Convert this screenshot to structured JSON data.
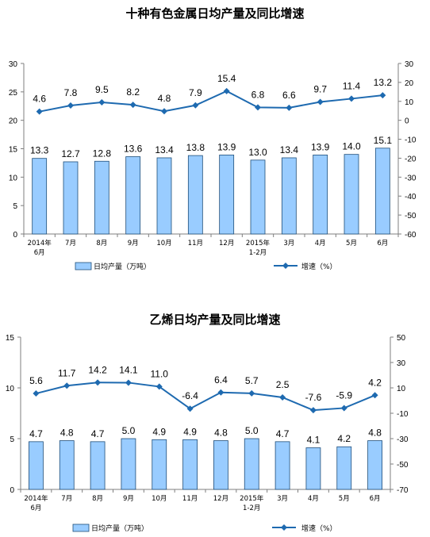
{
  "colors": {
    "bar_fill": "#99ccff",
    "bar_stroke": "#1f4e79",
    "line": "#1e6ab0",
    "axis": "#7f7f7f"
  },
  "chart_data": [
    {
      "type": "bar",
      "title": "十种有色金属日均产量及同比增速",
      "categories": [
        "2014年\n6月",
        "7月",
        "8月",
        "9月",
        "10月",
        "11月",
        "12月",
        "2015年\n1-2月",
        "3月",
        "4月",
        "5月",
        "6月"
      ],
      "yticks_left": [
        "0",
        "5",
        "10",
        "15",
        "20",
        "25",
        "30"
      ],
      "yticks_right": [
        "-60",
        "-50",
        "-40",
        "-30",
        "-20",
        "-10",
        "0",
        "10",
        "20",
        "30"
      ],
      "ylim_left": [
        0,
        30
      ],
      "ylim_right": [
        -60,
        30
      ],
      "series": [
        {
          "name": "日均产量（万吨）",
          "type": "bar",
          "axis": "left",
          "values": [
            13.3,
            12.7,
            12.8,
            13.6,
            13.4,
            13.8,
            13.9,
            13.0,
            13.4,
            13.9,
            14.0,
            15.1
          ],
          "labels": [
            "13.3",
            "12.7",
            "12.8",
            "13.6",
            "13.4",
            "13.8",
            "13.9",
            "13.0",
            "13.4",
            "13.9",
            "14.0",
            "15.1"
          ]
        },
        {
          "name": "增速（%）",
          "type": "line",
          "axis": "right",
          "values": [
            4.6,
            7.8,
            9.5,
            8.2,
            4.8,
            7.9,
            15.4,
            6.8,
            6.6,
            9.7,
            11.4,
            13.2
          ],
          "labels": [
            "4.6",
            "7.8",
            "9.5",
            "8.2",
            "4.8",
            "7.9",
            "15.4",
            "6.8",
            "6.6",
            "9.7",
            "11.4",
            "13.2"
          ]
        }
      ],
      "legend": "bottom"
    },
    {
      "type": "bar",
      "title": "乙烯日均产量及同比增速",
      "categories": [
        "2014年\n6月",
        "7月",
        "8月",
        "9月",
        "10月",
        "11月",
        "12月",
        "2015年\n1-2月",
        "3月",
        "4月",
        "5月",
        "6月"
      ],
      "yticks_left": [
        "0",
        "5",
        "10",
        "15"
      ],
      "yticks_right": [
        "-70",
        "-50",
        "-30",
        "-10",
        "10",
        "30",
        "50"
      ],
      "ylim_left": [
        0,
        15
      ],
      "ylim_right": [
        -70,
        50
      ],
      "series": [
        {
          "name": "日均产量（万吨）",
          "type": "bar",
          "axis": "left",
          "values": [
            4.7,
            4.8,
            4.7,
            5.0,
            4.9,
            4.9,
            4.8,
            5.0,
            4.7,
            4.1,
            4.2,
            4.8
          ],
          "labels": [
            "4.7",
            "4.8",
            "4.7",
            "5.0",
            "4.9",
            "4.9",
            "4.8",
            "5.0",
            "4.7",
            "4.1",
            "4.2",
            "4.8"
          ]
        },
        {
          "name": "增速（%）",
          "type": "line",
          "axis": "right",
          "values": [
            5.6,
            11.7,
            14.2,
            14.1,
            11.0,
            -6.4,
            6.4,
            5.7,
            2.5,
            -7.6,
            -5.9,
            4.2
          ],
          "labels": [
            "5.6",
            "11.7",
            "14.2",
            "14.1",
            "11.0",
            "-6.4",
            "6.4",
            "5.7",
            "2.5",
            "-7.6",
            "-5.9",
            "4.2"
          ]
        }
      ],
      "legend": "bottom"
    }
  ]
}
